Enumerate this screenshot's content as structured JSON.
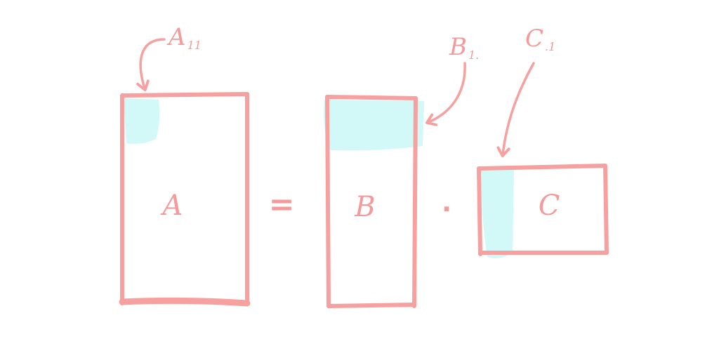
{
  "colors": {
    "stroke": "#f7a0a0",
    "highlight": "#d2f8f8",
    "text": "#f49a9a"
  },
  "matrices": {
    "A": {
      "name": "A"
    },
    "B": {
      "name": "B"
    },
    "C": {
      "name": "C"
    }
  },
  "operators": {
    "equals": "=",
    "dot": "·"
  },
  "annotations": {
    "a": {
      "letter": "A",
      "subscript": "11"
    },
    "b": {
      "letter": "B",
      "subscript": "1."
    },
    "c": {
      "letter": "C",
      "subscript": ".1"
    }
  }
}
